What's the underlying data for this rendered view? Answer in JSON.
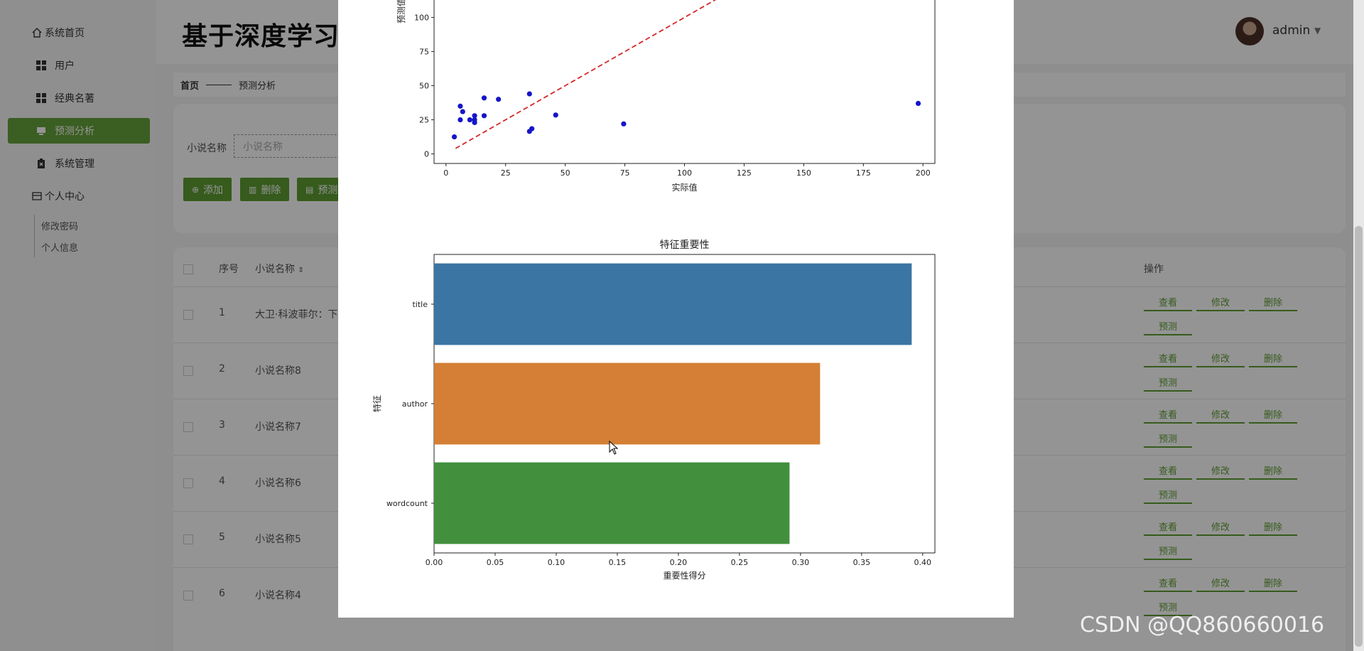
{
  "app": {
    "title": "基于深度学习的小说数据分析系统",
    "title_visible": "基于深度学习"
  },
  "sidebar": {
    "items": [
      {
        "label": "系统首页",
        "icon": "home-icon"
      },
      {
        "label": "用户",
        "icon": "grid-icon"
      },
      {
        "label": "经典名著",
        "icon": "grid-icon"
      },
      {
        "label": "预测分析",
        "icon": "monitor-icon",
        "active": true
      },
      {
        "label": "系统管理",
        "icon": "clipboard-icon"
      },
      {
        "label": "个人中心",
        "icon": "window-icon"
      }
    ],
    "sub_items": [
      "修改密码",
      "个人信息"
    ]
  },
  "header": {
    "user": "admin"
  },
  "breadcrumb": {
    "home": "首页",
    "current": "预测分析"
  },
  "search": {
    "label": "小说名称",
    "placeholder": "小说名称"
  },
  "toolbar": {
    "add": "添加",
    "delete": "删除",
    "predict": "预测"
  },
  "table": {
    "headers": {
      "index": "序号",
      "name": "小说名称",
      "ops": "操作"
    },
    "rows": [
      {
        "index": "1",
        "name": "大卫·科波菲尔：下"
      },
      {
        "index": "2",
        "name": "小说名称8"
      },
      {
        "index": "3",
        "name": "小说名称7"
      },
      {
        "index": "4",
        "name": "小说名称6"
      },
      {
        "index": "5",
        "name": "小说名称5"
      },
      {
        "index": "6",
        "name": "小说名称4"
      }
    ],
    "ops": {
      "view": "查看",
      "edit": "修改",
      "delete": "删除",
      "predict": "预测"
    }
  },
  "watermark": "CSDN @QQ860660016",
  "colors": {
    "accent": "#5e9d33",
    "bar1": "#3a75a4",
    "bar2": "#d47f35",
    "bar3": "#42903e",
    "scatter": "#1515c8",
    "ref_line": "#d62728"
  },
  "chart_data": [
    {
      "type": "scatter",
      "title": "",
      "xlabel": "实际值",
      "ylabel": "预测值",
      "xlim": [
        -5,
        205
      ],
      "ylim": [
        -7,
        118
      ],
      "xticks": [
        "0",
        "25",
        "50",
        "75",
        "100",
        "125",
        "150",
        "175",
        "200"
      ],
      "yticks": [
        "0",
        "25",
        "50",
        "75",
        "100"
      ],
      "points": [
        {
          "x": 3.5,
          "y": 12.5
        },
        {
          "x": 6,
          "y": 25
        },
        {
          "x": 6,
          "y": 35
        },
        {
          "x": 7,
          "y": 31
        },
        {
          "x": 10,
          "y": 25
        },
        {
          "x": 12,
          "y": 23
        },
        {
          "x": 12,
          "y": 25
        },
        {
          "x": 12,
          "y": 28
        },
        {
          "x": 16,
          "y": 28
        },
        {
          "x": 16,
          "y": 41
        },
        {
          "x": 22,
          "y": 40
        },
        {
          "x": 35,
          "y": 16.5
        },
        {
          "x": 35,
          "y": 44
        },
        {
          "x": 36,
          "y": 18.5
        },
        {
          "x": 46,
          "y": 28.5
        },
        {
          "x": 74.5,
          "y": 22
        },
        {
          "x": 198,
          "y": 37
        }
      ],
      "reference_line": {
        "x": [
          4,
          116
        ],
        "y": [
          4,
          116
        ]
      }
    },
    {
      "type": "bar",
      "orientation": "horizontal",
      "title": "特征重要性",
      "xlabel": "重要性得分",
      "ylabel": "特征",
      "xlim": [
        0,
        0.41
      ],
      "xticks": [
        "0.00",
        "0.05",
        "0.10",
        "0.15",
        "0.20",
        "0.25",
        "0.30",
        "0.35",
        "0.40"
      ],
      "categories": [
        "title",
        "author",
        "wordcount"
      ],
      "values": [
        0.391,
        0.316,
        0.291
      ]
    }
  ]
}
